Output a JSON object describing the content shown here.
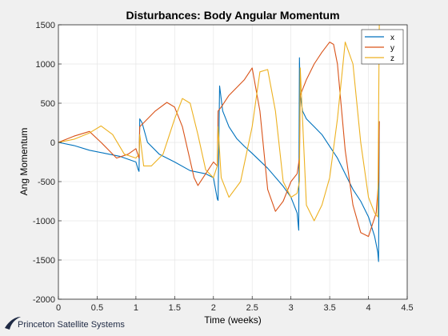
{
  "colors": {
    "background": "#f0f0f0",
    "plot_bg": "#ffffff",
    "x": "#0072BD",
    "y": "#D95319",
    "z": "#EDB120",
    "brand": "#1f2a44"
  },
  "brand": {
    "name": "Princeton Satellite Systems",
    "logo_icon": "swoosh-logo-icon"
  },
  "chart_data": {
    "type": "line",
    "title": "Disturbances: Body Angular Momentum",
    "xlabel": "Time (weeks)",
    "ylabel": "Ang Momentum",
    "xlim": [
      0,
      4.5
    ],
    "ylim": [
      -2000,
      1500
    ],
    "xticks": [
      0,
      0.5,
      1,
      1.5,
      2,
      2.5,
      3,
      3.5,
      4,
      4.5
    ],
    "yticks": [
      -2000,
      -1500,
      -1000,
      -500,
      0,
      500,
      1000,
      1500
    ],
    "xtick_labels": [
      "0",
      "0.5",
      "1",
      "1.5",
      "2",
      "2.5",
      "3",
      "3.5",
      "4",
      "4.5"
    ],
    "ytick_labels": [
      "-2000",
      "-1500",
      "-1000",
      "-500",
      "0",
      "500",
      "1000",
      "1500"
    ],
    "grid": true,
    "legend_position": "top-right",
    "series": [
      {
        "name": "x",
        "color": "#0072BD",
        "x": [
          0,
          0.2,
          0.4,
          0.6,
          0.8,
          1.0,
          1.03,
          1.04,
          1.05,
          1.08,
          1.15,
          1.3,
          1.5,
          1.7,
          1.9,
          2.0,
          2.05,
          2.06,
          2.08,
          2.12,
          2.2,
          2.3,
          2.4,
          2.5,
          2.7,
          2.9,
          3.0,
          3.08,
          3.1,
          3.11,
          3.12,
          3.15,
          3.2,
          3.3,
          3.4,
          3.5,
          3.6,
          3.7,
          3.8,
          3.9,
          4.0,
          4.08,
          4.12,
          4.13,
          4.14
        ],
        "y": [
          0,
          -40,
          -100,
          -140,
          -180,
          -250,
          -350,
          -370,
          300,
          250,
          0,
          -150,
          -250,
          -360,
          -400,
          -450,
          -720,
          -740,
          720,
          400,
          200,
          50,
          -50,
          -140,
          -330,
          -560,
          -700,
          -900,
          -1120,
          1080,
          600,
          400,
          300,
          200,
          100,
          -50,
          -200,
          -400,
          -600,
          -750,
          -950,
          -1200,
          -1400,
          -1520,
          270
        ]
      },
      {
        "name": "y",
        "color": "#D95319",
        "x": [
          0,
          0.2,
          0.4,
          0.55,
          0.75,
          0.9,
          1.0,
          1.04,
          1.05,
          1.1,
          1.25,
          1.4,
          1.5,
          1.6,
          1.75,
          1.8,
          1.9,
          2.0,
          2.05,
          2.06,
          2.1,
          2.2,
          2.4,
          2.5,
          2.6,
          2.7,
          2.8,
          2.9,
          3.0,
          3.08,
          3.11,
          3.12,
          3.2,
          3.3,
          3.4,
          3.5,
          3.55,
          3.6,
          3.7,
          3.8,
          3.9,
          4.0,
          4.1,
          4.13,
          4.14
        ],
        "y": [
          0,
          80,
          140,
          0,
          -200,
          -150,
          -80,
          -200,
          200,
          250,
          400,
          510,
          450,
          200,
          -450,
          -550,
          -400,
          -250,
          -300,
          400,
          450,
          600,
          800,
          950,
          400,
          -600,
          -880,
          -750,
          -500,
          -400,
          -200,
          600,
          800,
          1000,
          1150,
          1280,
          1250,
          1000,
          -100,
          -800,
          -1150,
          -1200,
          -900,
          -500,
          270
        ]
      },
      {
        "name": "z",
        "color": "#EDB120",
        "x": [
          0,
          0.2,
          0.4,
          0.55,
          0.7,
          0.85,
          1.0,
          1.04,
          1.05,
          1.1,
          1.2,
          1.35,
          1.5,
          1.6,
          1.7,
          1.8,
          1.9,
          2.0,
          2.05,
          2.06,
          2.1,
          2.2,
          2.35,
          2.5,
          2.6,
          2.7,
          2.8,
          2.9,
          3.0,
          3.08,
          3.11,
          3.12,
          3.2,
          3.3,
          3.4,
          3.5,
          3.6,
          3.7,
          3.8,
          3.9,
          4.0,
          4.08,
          4.12,
          4.13,
          4.14
        ],
        "y": [
          0,
          40,
          120,
          210,
          100,
          -150,
          -200,
          -150,
          100,
          -300,
          -300,
          -150,
          300,
          560,
          500,
          100,
          -350,
          -450,
          -300,
          200,
          -450,
          -700,
          -500,
          200,
          900,
          930,
          400,
          -500,
          -700,
          -650,
          -500,
          950,
          -800,
          -1000,
          -800,
          -450,
          300,
          1280,
          1000,
          0,
          -700,
          -900,
          -950,
          300,
          1500
        ]
      }
    ]
  }
}
